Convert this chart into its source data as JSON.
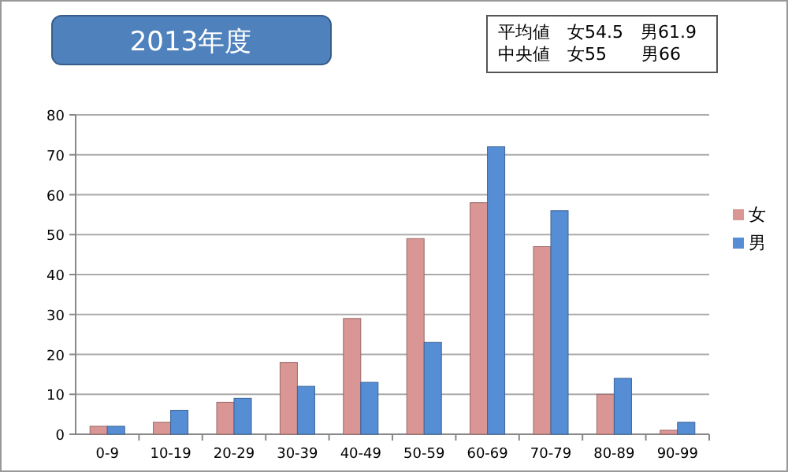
{
  "chart_data": {
    "type": "bar",
    "title": "2013年度",
    "annotations": [
      "平均値　女54.5　男61.9",
      "中央値　女55　　男66"
    ],
    "categories": [
      "0-9",
      "10-19",
      "20-29",
      "30-39",
      "40-49",
      "50-59",
      "60-69",
      "70-79",
      "80-89",
      "90-99"
    ],
    "series": [
      {
        "name": "女",
        "color": "#d99694",
        "values": [
          2,
          3,
          8,
          18,
          29,
          49,
          58,
          47,
          10,
          1
        ]
      },
      {
        "name": "男",
        "color": "#558ed5",
        "values": [
          2,
          6,
          9,
          12,
          13,
          23,
          72,
          56,
          14,
          3
        ]
      }
    ],
    "ylim": [
      0,
      80
    ],
    "yticks": [
      0,
      10,
      20,
      30,
      40,
      50,
      60,
      70,
      80
    ],
    "grid": "y",
    "legend": "right"
  }
}
